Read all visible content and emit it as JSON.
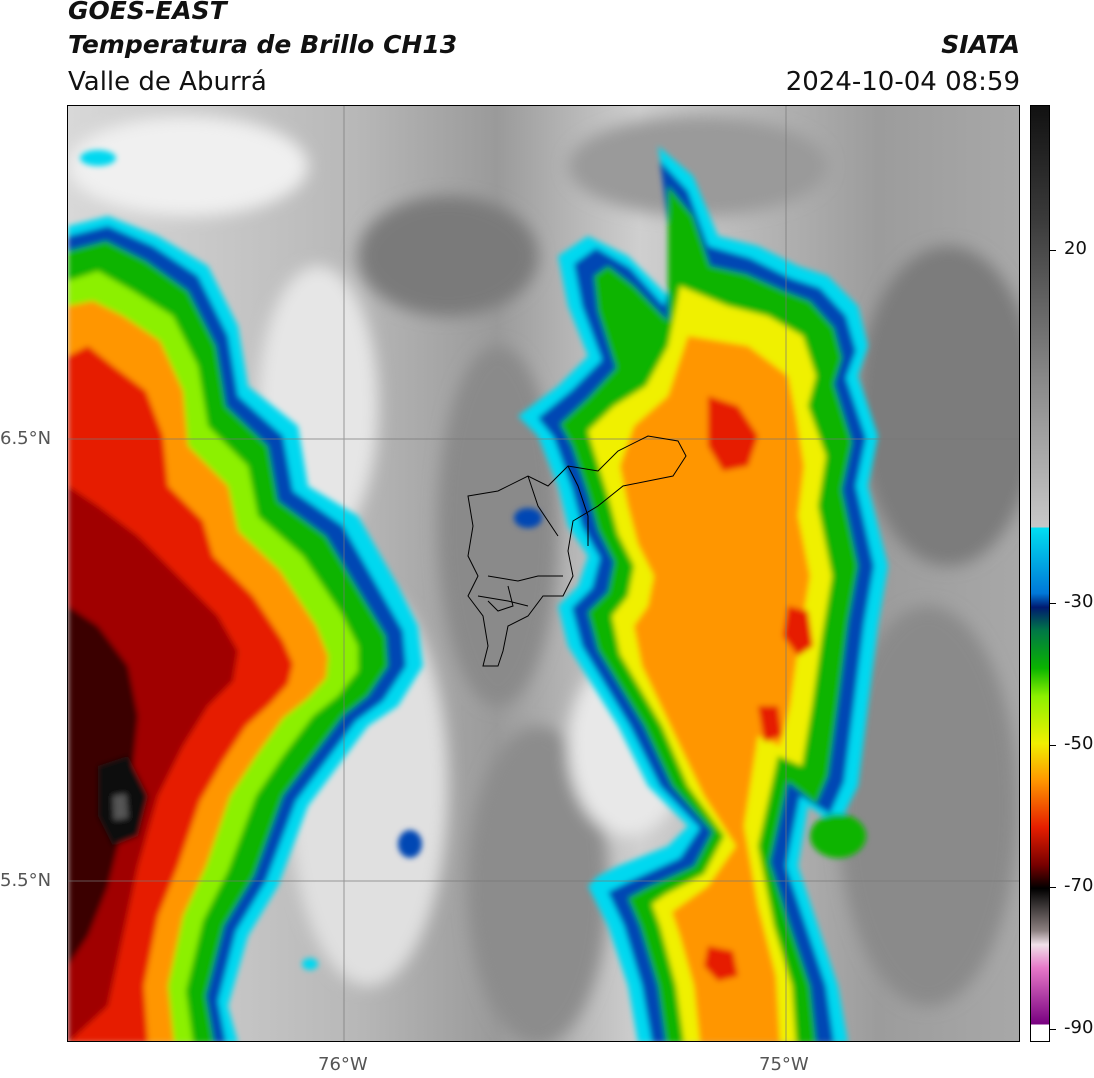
{
  "header": {
    "satellite": "GOES-EAST",
    "product": "Temperatura de Brillo CH13",
    "region": "Valle de Aburrá",
    "org": "SIATA",
    "datetime": "2024-10-04 08:59"
  },
  "map": {
    "lat_ticks": [
      "6.5°N",
      "5.5°N"
    ],
    "lon_ticks": [
      "76°W",
      "75°W"
    ],
    "gridlines": true
  },
  "colorbar": {
    "ticks": [
      "20",
      "-30",
      "-50",
      "-70",
      "-90"
    ],
    "colors": {
      "warm_gray_dark": "#1a1a1a",
      "gray_mid": "#8c8c8c",
      "white": "#f2f2f2",
      "cyan": "#00d8f0",
      "blue": "#0046b4",
      "dark_blue": "#001a70",
      "green": "#0ab400",
      "lime": "#8cf000",
      "yellow": "#f0f000",
      "orange": "#ff9600",
      "red": "#e61e00",
      "dark_red": "#780000",
      "black": "#000000",
      "pink": "#e678c8",
      "purple": "#780080"
    }
  }
}
